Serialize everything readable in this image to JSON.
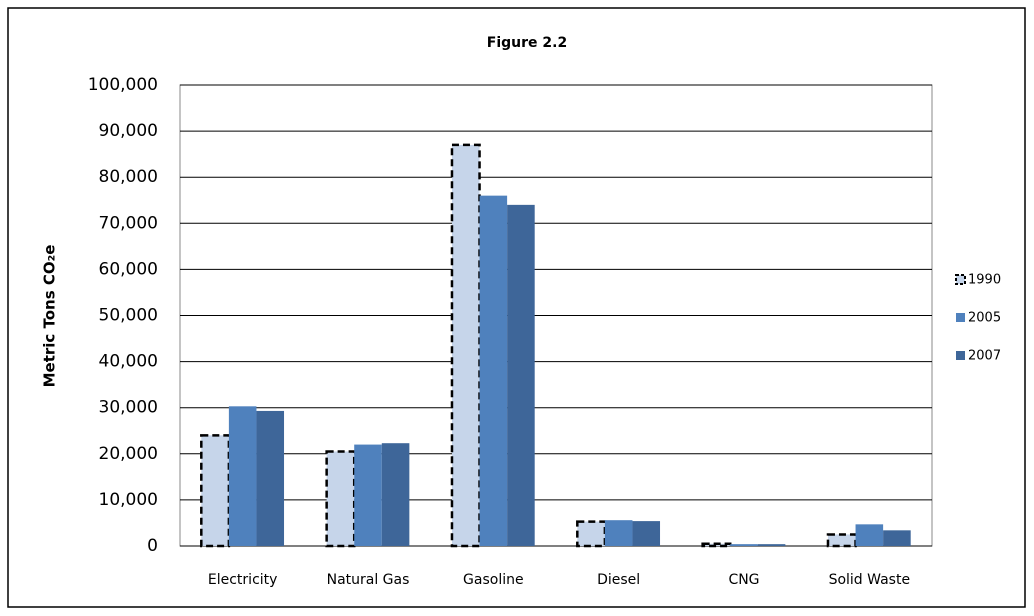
{
  "chart_data": {
    "type": "bar",
    "title": "Figure 2.2",
    "y_label": "Metric Tons CO₂e",
    "categories": [
      "Electricity",
      "Natural Gas",
      "Gasoline",
      "Diesel",
      "CNG",
      "Solid Waste"
    ],
    "series": [
      {
        "name": "1990",
        "color": "#c6d5ea",
        "border": "dashed",
        "values": [
          24000,
          20500,
          87000,
          5300,
          500,
          2500
        ]
      },
      {
        "name": "2005",
        "color": "#4f81bd",
        "values": [
          30300,
          22000,
          76000,
          5600,
          400,
          4700
        ]
      },
      {
        "name": "2007",
        "color": "#3e6699",
        "values": [
          29300,
          22300,
          74000,
          5400,
          400,
          3400
        ]
      }
    ],
    "ylim": [
      0,
      100000
    ],
    "yticks": [
      0,
      {
        "value": 10000,
        "label": "10,000"
      },
      {
        "value": 20000,
        "label": "20,000"
      },
      {
        "value": 30000,
        "label": "30,000"
      },
      {
        "value": 40000,
        "label": "40,000"
      },
      {
        "value": 50000,
        "label": "50,000"
      },
      {
        "value": 60000,
        "label": "60,000"
      },
      {
        "value": 70000,
        "label": "70,000"
      },
      {
        "value": 80000,
        "label": "80,000"
      },
      {
        "value": 90000,
        "label": "90,000"
      },
      {
        "value": 100000,
        "label": "100,000"
      }
    ],
    "grid": true,
    "legend": "right"
  }
}
